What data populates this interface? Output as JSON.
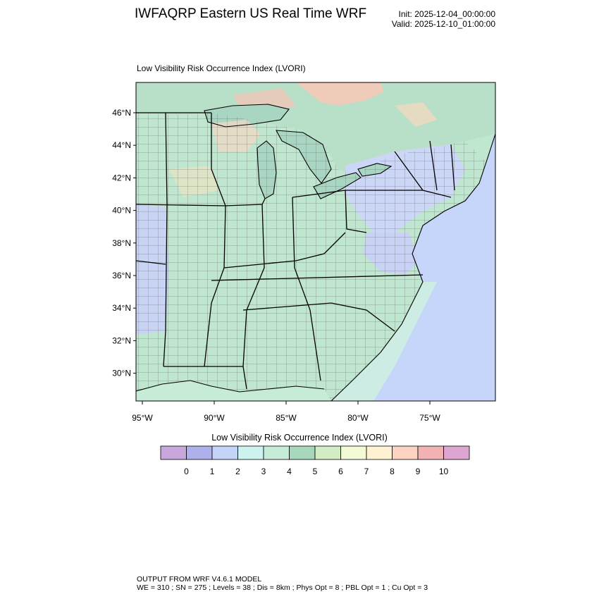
{
  "header": {
    "title": "IWFAQRP Eastern US Real Time WRF",
    "init": "Init: 2025-12-04_00:00:00",
    "valid": "Valid: 2025-12-10_01:00:00"
  },
  "plot": {
    "subtitle": "Low Visibility Risk Occurrence Index   (LVORI)",
    "lat_labels": [
      "46°N",
      "44°N",
      "42°N",
      "40°N",
      "38°N",
      "36°N",
      "34°N",
      "32°N",
      "30°N"
    ],
    "lon_labels": [
      "95°W",
      "90°W",
      "85°W",
      "80°W",
      "75°W"
    ]
  },
  "colorbar": {
    "title": "Low Visibility Risk Occurrence Index  (LVORI)",
    "labels": [
      "0",
      "1",
      "2",
      "3",
      "4",
      "5",
      "6",
      "7",
      "8",
      "9",
      "10"
    ],
    "colors": [
      "#c8a8dc",
      "#aeb0ec",
      "#c4d4f8",
      "#cdf3ee",
      "#c6ecd8",
      "#a8d8bc",
      "#d2ecc4",
      "#f2fad6",
      "#fff2d2",
      "#fcd2c0",
      "#f0b2b2",
      "#dca6d0"
    ]
  },
  "footer": {
    "line1": "OUTPUT FROM WRF V4.6.1 MODEL",
    "line2": "WE = 310 ; SN = 275 ; Levels = 38 ; Dis = 8km ; Phys Opt = 8 ; PBL Opt = 1 ; Cu Opt = 3"
  }
}
